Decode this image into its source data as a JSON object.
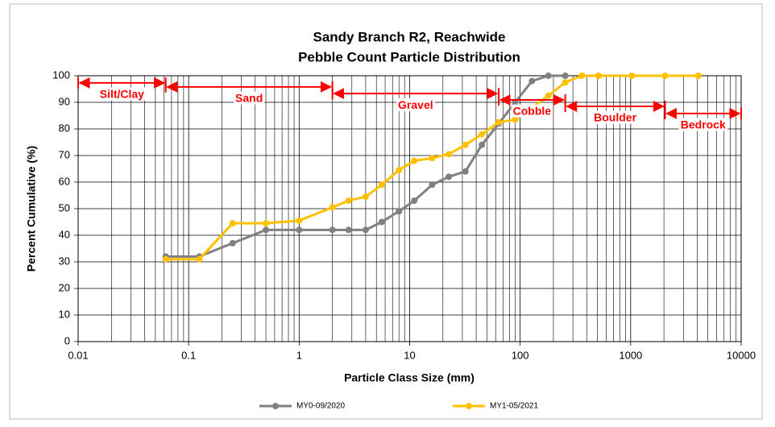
{
  "chart_data": {
    "type": "line",
    "title": [
      "Sandy Branch R2, Reachwide",
      "Pebble Count Particle Distribution"
    ],
    "x_label": "Particle Class Size (mm)",
    "y_label": "Percent Cumulative (%)",
    "x_scale": "log",
    "xlim": [
      0.01,
      10000
    ],
    "xticks": [
      0.01,
      0.1,
      1,
      10,
      100,
      1000,
      10000
    ],
    "ylim": [
      0,
      100
    ],
    "yticks": [
      0,
      10,
      20,
      30,
      40,
      50,
      60,
      70,
      80,
      90,
      100
    ],
    "grid": true,
    "minor_grid": true,
    "legend": "bottom",
    "series": [
      {
        "name": "MY0-09/2020",
        "color": "#808080",
        "x": [
          0.062,
          0.125,
          0.25,
          0.5,
          1,
          2,
          2.8,
          4,
          5.6,
          8,
          11,
          16,
          22.6,
          32,
          45,
          64,
          90,
          128,
          180,
          256
        ],
        "values": [
          32,
          32,
          37,
          42,
          42,
          42,
          42,
          42,
          45,
          49,
          53,
          59,
          62,
          64,
          74,
          82,
          90,
          98,
          100,
          100
        ]
      },
      {
        "name": "MY1-05/2021",
        "color": "#ffc000",
        "x": [
          0.062,
          0.125,
          0.25,
          0.5,
          1,
          2,
          2.8,
          4,
          5.6,
          8,
          11,
          16,
          22.6,
          32,
          45,
          64,
          90,
          128,
          180,
          256,
          362,
          512,
          1024,
          2048,
          4096
        ],
        "values": [
          31,
          31,
          44.5,
          44.5,
          45.5,
          50.5,
          53,
          54.5,
          59,
          64.5,
          68,
          69,
          70.5,
          74,
          78,
          82.5,
          83.5,
          88,
          92.5,
          97.5,
          100,
          100,
          100,
          100,
          100
        ]
      }
    ],
    "annotations": [
      {
        "text": "Silt/Clay",
        "x0": 0.01,
        "x1": 0.062,
        "y": 97.3
      },
      {
        "text": "Sand",
        "x0": 0.062,
        "x1": 2,
        "y": 95.8
      },
      {
        "text": "Gravel",
        "x0": 2,
        "x1": 64,
        "y": 93.3
      },
      {
        "text": "Cobble",
        "x0": 64,
        "x1": 256,
        "y": 90.9
      },
      {
        "text": "Boulder",
        "x0": 256,
        "x1": 2048,
        "y": 88.5
      },
      {
        "text": "Bedrock",
        "x0": 2048,
        "x1": 10000,
        "y": 85.8
      }
    ],
    "annotation_color": "#ff0000"
  }
}
